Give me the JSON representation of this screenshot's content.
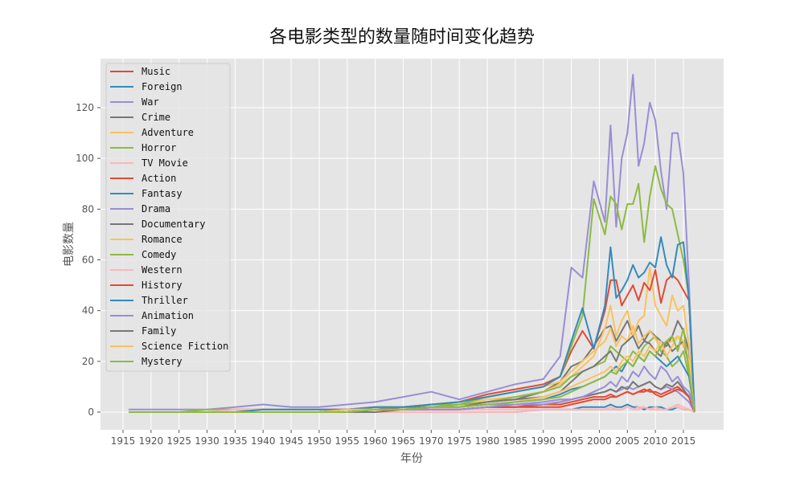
{
  "chart_data": {
    "type": "line",
    "title": "各电影类型的数量随时间变化趋势",
    "xlabel": "年份",
    "ylabel": "电影数量",
    "xlim": [
      1911,
      2022
    ],
    "ylim": [
      -7,
      138
    ],
    "xticks": [
      1915,
      1920,
      1925,
      1930,
      1935,
      1940,
      1945,
      1950,
      1955,
      1960,
      1965,
      1970,
      1975,
      1980,
      1985,
      1990,
      1995,
      2000,
      2005,
      2010,
      2015
    ],
    "yticks": [
      0,
      20,
      40,
      60,
      80,
      100,
      120
    ],
    "grid": true,
    "legend_position": "upper left",
    "x": [
      1916,
      1920,
      1925,
      1930,
      1935,
      1940,
      1945,
      1950,
      1955,
      1960,
      1965,
      1970,
      1975,
      1980,
      1985,
      1990,
      1993,
      1995,
      1997,
      1999,
      2001,
      2002,
      2003,
      2004,
      2005,
      2006,
      2007,
      2008,
      2009,
      2010,
      2011,
      2012,
      2013,
      2014,
      2015,
      2016,
      2017
    ],
    "series": [
      {
        "name": "Music",
        "color": "#E24A33",
        "values": [
          0,
          0,
          0,
          0,
          0,
          0,
          0,
          0,
          0,
          1,
          1,
          1,
          1,
          2,
          2,
          2,
          2,
          3,
          4,
          5,
          5,
          6,
          6,
          7,
          8,
          7,
          8,
          9,
          8,
          8,
          7,
          8,
          9,
          10,
          8,
          6,
          0
        ]
      },
      {
        "name": "Foreign",
        "color": "#348ABD",
        "values": [
          0,
          0,
          0,
          0,
          0,
          0,
          0,
          0,
          0,
          0,
          0,
          0,
          0,
          0,
          0,
          1,
          1,
          1,
          2,
          2,
          2,
          3,
          2,
          2,
          3,
          2,
          2,
          1,
          2,
          2,
          2,
          1,
          1,
          2,
          1,
          1,
          0
        ]
      },
      {
        "name": "War",
        "color": "#988ED5",
        "values": [
          0,
          0,
          0,
          0,
          0,
          1,
          1,
          1,
          1,
          1,
          2,
          2,
          2,
          3,
          3,
          4,
          5,
          5,
          6,
          7,
          8,
          9,
          8,
          9,
          10,
          9,
          10,
          11,
          12,
          10,
          9,
          10,
          9,
          8,
          6,
          4,
          0
        ]
      },
      {
        "name": "Crime",
        "color": "#777777",
        "values": [
          0,
          0,
          0,
          0,
          0,
          0,
          0,
          0,
          1,
          1,
          2,
          2,
          3,
          4,
          5,
          8,
          12,
          18,
          20,
          26,
          33,
          34,
          28,
          32,
          36,
          30,
          34,
          28,
          32,
          30,
          28,
          26,
          30,
          36,
          32,
          24,
          0
        ]
      },
      {
        "name": "Adventure",
        "color": "#FBC15E",
        "values": [
          0,
          0,
          0,
          0,
          1,
          1,
          1,
          1,
          1,
          2,
          2,
          3,
          3,
          5,
          6,
          8,
          11,
          14,
          18,
          22,
          33,
          42,
          30,
          36,
          40,
          30,
          36,
          38,
          57,
          42,
          38,
          34,
          46,
          40,
          42,
          26,
          0
        ]
      },
      {
        "name": "Horror",
        "color": "#8EBA42",
        "values": [
          0,
          0,
          0,
          0,
          0,
          0,
          0,
          0,
          1,
          1,
          1,
          2,
          3,
          4,
          6,
          8,
          10,
          14,
          16,
          18,
          20,
          26,
          24,
          22,
          20,
          24,
          22,
          26,
          28,
          30,
          24,
          22,
          18,
          20,
          24,
          14,
          0
        ]
      },
      {
        "name": "TV Movie",
        "color": "#FFB5B8",
        "values": [
          0,
          0,
          0,
          0,
          0,
          0,
          0,
          0,
          0,
          0,
          0,
          0,
          0,
          0,
          0,
          1,
          1,
          1,
          1,
          1,
          1,
          2,
          1,
          1,
          2,
          1,
          2,
          2,
          1,
          2,
          1,
          1,
          2,
          3,
          2,
          1,
          0
        ]
      },
      {
        "name": "Action",
        "color": "#E24A33",
        "values": [
          0,
          0,
          0,
          0,
          1,
          1,
          1,
          1,
          1,
          2,
          2,
          3,
          4,
          7,
          9,
          11,
          14,
          24,
          32,
          25,
          40,
          52,
          52,
          42,
          46,
          50,
          44,
          51,
          48,
          56,
          43,
          52,
          54,
          52,
          48,
          44,
          0
        ]
      },
      {
        "name": "Fantasy",
        "color": "#348ABD",
        "values": [
          0,
          0,
          0,
          0,
          0,
          0,
          0,
          0,
          1,
          1,
          1,
          2,
          2,
          3,
          4,
          5,
          7,
          9,
          10,
          12,
          14,
          16,
          18,
          16,
          20,
          18,
          22,
          20,
          24,
          22,
          20,
          18,
          20,
          22,
          18,
          14,
          0
        ]
      },
      {
        "name": "Drama",
        "color": "#988ED5",
        "values": [
          1,
          1,
          1,
          1,
          2,
          3,
          2,
          2,
          3,
          4,
          6,
          8,
          5,
          8,
          11,
          13,
          22,
          57,
          53,
          91,
          75,
          113,
          73,
          100,
          110,
          133,
          97,
          106,
          122,
          115,
          95,
          80,
          110,
          110,
          94,
          50,
          0
        ]
      },
      {
        "name": "Documentary",
        "color": "#777777",
        "values": [
          0,
          0,
          0,
          0,
          0,
          0,
          0,
          0,
          0,
          0,
          1,
          1,
          1,
          2,
          2,
          3,
          4,
          5,
          6,
          7,
          8,
          9,
          8,
          10,
          9,
          12,
          10,
          11,
          12,
          10,
          9,
          11,
          10,
          12,
          9,
          6,
          0
        ]
      },
      {
        "name": "Romance",
        "color": "#FBC15E",
        "values": [
          0,
          0,
          0,
          0,
          1,
          1,
          1,
          1,
          1,
          2,
          2,
          3,
          4,
          6,
          8,
          10,
          12,
          16,
          20,
          24,
          28,
          33,
          26,
          30,
          28,
          34,
          27,
          30,
          32,
          29,
          25,
          27,
          28,
          30,
          26,
          20,
          0
        ]
      },
      {
        "name": "Comedy",
        "color": "#8EBA42",
        "values": [
          0,
          0,
          0,
          1,
          1,
          1,
          1,
          1,
          1,
          2,
          2,
          3,
          3,
          6,
          8,
          10,
          14,
          26,
          38,
          84,
          70,
          85,
          82,
          72,
          82,
          82,
          90,
          67,
          85,
          97,
          88,
          82,
          80,
          70,
          60,
          45,
          0
        ]
      },
      {
        "name": "Western",
        "color": "#FFB5B8",
        "values": [
          0,
          0,
          0,
          0,
          1,
          1,
          1,
          1,
          1,
          1,
          1,
          1,
          1,
          1,
          1,
          1,
          1,
          1,
          1,
          1,
          1,
          1,
          1,
          1,
          2,
          1,
          1,
          2,
          1,
          1,
          1,
          1,
          2,
          2,
          1,
          1,
          0
        ]
      },
      {
        "name": "History",
        "color": "#E24A33",
        "values": [
          0,
          0,
          0,
          0,
          0,
          0,
          0,
          0,
          0,
          1,
          1,
          1,
          1,
          2,
          2,
          3,
          3,
          4,
          5,
          6,
          6,
          7,
          6,
          7,
          8,
          7,
          8,
          8,
          9,
          7,
          6,
          7,
          8,
          9,
          8,
          6,
          0
        ]
      },
      {
        "name": "Thriller",
        "color": "#348ABD",
        "values": [
          0,
          0,
          0,
          0,
          0,
          1,
          1,
          1,
          1,
          2,
          2,
          3,
          4,
          6,
          8,
          10,
          14,
          28,
          41,
          25,
          42,
          65,
          45,
          48,
          52,
          58,
          53,
          55,
          59,
          57,
          69,
          58,
          53,
          66,
          67,
          44,
          0
        ]
      },
      {
        "name": "Animation",
        "color": "#988ED5",
        "values": [
          0,
          0,
          0,
          0,
          0,
          0,
          0,
          0,
          0,
          1,
          1,
          1,
          1,
          2,
          3,
          3,
          4,
          5,
          6,
          8,
          10,
          12,
          10,
          14,
          12,
          16,
          14,
          18,
          15,
          13,
          18,
          16,
          12,
          14,
          10,
          8,
          0
        ]
      },
      {
        "name": "Family",
        "color": "#777777",
        "values": [
          0,
          0,
          0,
          0,
          0,
          0,
          0,
          0,
          1,
          1,
          1,
          2,
          2,
          4,
          5,
          6,
          8,
          12,
          16,
          18,
          22,
          24,
          20,
          26,
          28,
          30,
          25,
          28,
          27,
          24,
          22,
          28,
          24,
          26,
          28,
          18,
          0
        ]
      },
      {
        "name": "Science Fiction",
        "color": "#FBC15E",
        "values": [
          0,
          0,
          0,
          0,
          0,
          0,
          0,
          0,
          1,
          1,
          1,
          2,
          2,
          3,
          4,
          6,
          8,
          10,
          12,
          14,
          16,
          18,
          16,
          20,
          22,
          20,
          24,
          22,
          26,
          24,
          28,
          22,
          26,
          30,
          28,
          20,
          0
        ]
      },
      {
        "name": "Mystery",
        "color": "#8EBA42",
        "values": [
          0,
          0,
          0,
          0,
          0,
          0,
          0,
          0,
          0,
          1,
          1,
          2,
          2,
          3,
          4,
          5,
          6,
          8,
          10,
          12,
          14,
          16,
          15,
          18,
          20,
          18,
          22,
          20,
          24,
          22,
          26,
          28,
          30,
          24,
          33,
          16,
          0
        ]
      }
    ]
  }
}
